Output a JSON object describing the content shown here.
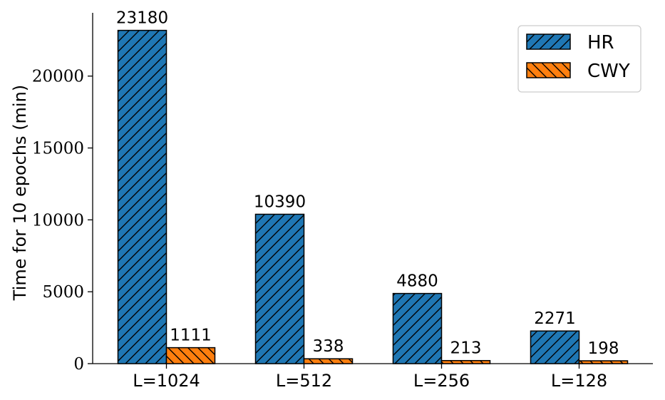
{
  "chart_data": {
    "type": "bar",
    "categories": [
      "L=1024",
      "L=512",
      "L=256",
      "L=128"
    ],
    "series": [
      {
        "name": "HR",
        "values": [
          23180,
          10390,
          4880,
          2271
        ],
        "color": "#1f77b4",
        "hatch": "forward-diagonal"
      },
      {
        "name": "CWY",
        "values": [
          1111,
          338,
          213,
          198
        ],
        "color": "#ff7f0e",
        "hatch": "backward-diagonal"
      }
    ],
    "ylabel": "Time for 10 epochs (min)",
    "xlabel": "",
    "ylim": [
      0,
      24400
    ],
    "yticks": [
      0,
      5000,
      10000,
      15000,
      20000
    ],
    "grid": false,
    "legend_position": "top-right",
    "bar_labels": true
  }
}
